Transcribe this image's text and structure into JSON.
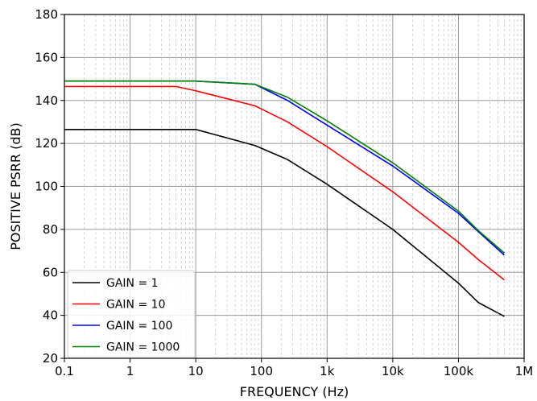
{
  "chart_data": {
    "type": "line",
    "title": "",
    "xlabel": "FREQUENCY (Hz)",
    "ylabel": "POSITIVE PSRR (dB)",
    "xscale": "log",
    "xlim": [
      0.1,
      1000000
    ],
    "ylim": [
      20,
      180
    ],
    "x_ticks": [
      0.1,
      1,
      10,
      100,
      1000,
      10000,
      100000,
      1000000
    ],
    "x_tick_labels": [
      "0.1",
      "1",
      "10",
      "100",
      "1k",
      "10k",
      "100k",
      "1M"
    ],
    "y_ticks": [
      20,
      40,
      60,
      80,
      100,
      120,
      140,
      160,
      180
    ],
    "y_tick_labels": [
      "20",
      "40",
      "60",
      "80",
      "100",
      "120",
      "140",
      "160",
      "180"
    ],
    "grid": true,
    "minor_grid": true,
    "legend_position": "bottom-left",
    "series": [
      {
        "name": "GAIN = 1",
        "color": "#000000",
        "x": [
          0.1,
          1,
          10,
          80,
          250,
          1000,
          10000,
          100000,
          200000,
          500000
        ],
        "y": [
          126.5,
          126.5,
          126.5,
          119,
          112.5,
          101,
          80,
          55,
          46,
          39.5
        ]
      },
      {
        "name": "GAIN = 10",
        "color": "#ff0000",
        "x": [
          0.1,
          1,
          5,
          10,
          80,
          250,
          1000,
          10000,
          100000,
          200000,
          500000
        ],
        "y": [
          146.5,
          146.5,
          146.5,
          144.5,
          137.5,
          130,
          118.5,
          97.5,
          74,
          66,
          56.5
        ]
      },
      {
        "name": "GAIN = 100",
        "color": "#0000ff",
        "x": [
          0.1,
          1,
          10,
          80,
          250,
          1000,
          10000,
          100000,
          200000,
          500000
        ],
        "y": [
          149,
          149,
          149,
          147.5,
          140,
          128.5,
          109.5,
          87.5,
          79,
          68
        ]
      },
      {
        "name": "GAIN = 1000",
        "color": "#008000",
        "x": [
          0.1,
          1,
          10,
          80,
          250,
          1000,
          10000,
          100000,
          200000,
          500000
        ],
        "y": [
          149,
          149,
          149,
          147.5,
          141.5,
          130.5,
          111,
          88.5,
          79.5,
          69
        ]
      }
    ]
  }
}
